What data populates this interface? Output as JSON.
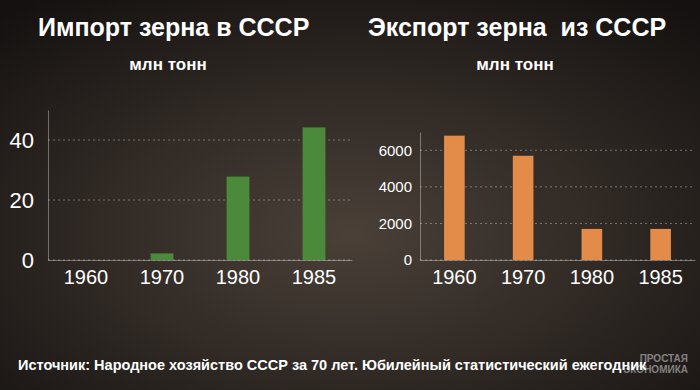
{
  "chart_data": [
    {
      "type": "bar",
      "title": "Импорт зерна в СССР",
      "subtitle": "млн тонн",
      "categories": [
        "1960",
        "1970",
        "1980",
        "1985"
      ],
      "values": [
        0,
        2.2,
        27.8,
        44.2
      ],
      "color": "#4c8a3b",
      "ylim": [
        0,
        50
      ],
      "yticks": [
        0,
        20,
        40
      ],
      "grid": true
    },
    {
      "type": "bar",
      "title": "Экспорт зерна  из СССР",
      "subtitle": "млн тонн",
      "categories": [
        "1960",
        "1970",
        "1980",
        "1985"
      ],
      "values": [
        6800,
        5700,
        1700,
        1700
      ],
      "color": "#e38b48",
      "ylim": [
        0,
        7000
      ],
      "yticks": [
        0,
        2000,
        4000,
        6000
      ],
      "grid": true
    }
  ],
  "source": "Источник: Народное хозяйство СССР за 70 лет. Юбилейный статистический ежегодник",
  "watermark": [
    "ПРОСТАЯ",
    "ЭКОНОМИКА"
  ]
}
